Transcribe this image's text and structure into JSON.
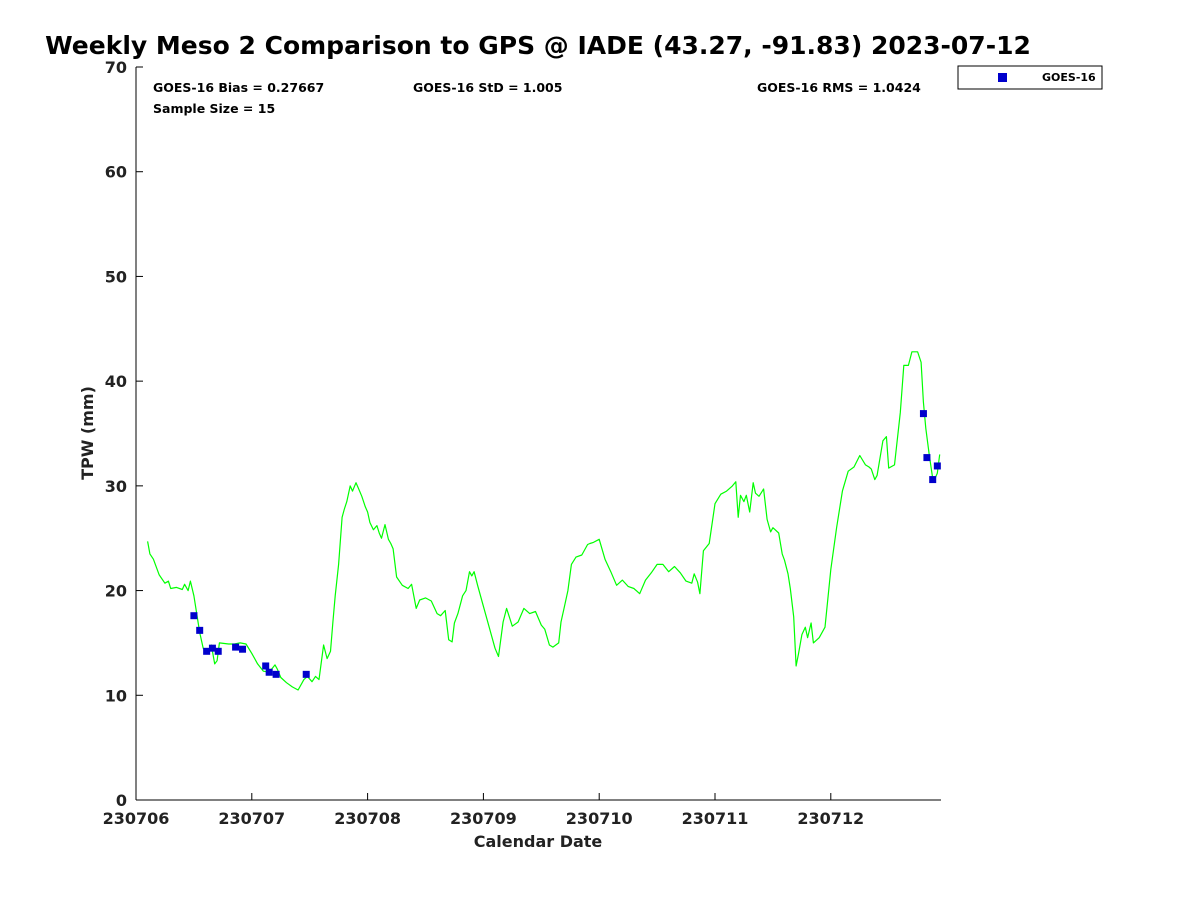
{
  "chart_data": {
    "type": "line",
    "title": "Weekly Meso 2 Comparison to GPS @ IADE (43.27, -91.83) 2023-07-12",
    "xlabel": "Calendar Date",
    "ylabel": "TPW (mm)",
    "ylim": [
      0,
      70
    ],
    "y_ticks": [
      "0",
      "10",
      "20",
      "30",
      "40",
      "50",
      "60",
      "70"
    ],
    "x_ticks": [
      "230706",
      "230707",
      "230708",
      "230709",
      "230710",
      "230711",
      "230712"
    ],
    "grid": false,
    "legend_position": "top-right outside plot",
    "stats": {
      "bias": "GOES-16 Bias = 0.27667",
      "std": "GOES-16 StD = 1.005",
      "rms": "GOES-16 RMS = 1.0424",
      "sample_size": "Sample Size = 15"
    },
    "series": [
      {
        "name": "",
        "kind": "line",
        "color": "#00ff00",
        "x": [
          230706.1,
          230706.12,
          230706.15,
          230706.2,
          230706.25,
          230706.28,
          230706.3,
          230706.35,
          230706.4,
          230706.42,
          230706.45,
          230706.47,
          230706.5,
          230706.55,
          230706.58,
          230706.62,
          230706.65,
          230706.68,
          230706.7,
          230706.72,
          230706.8,
          230706.85,
          230706.9,
          230706.95,
          230707.0,
          230707.05,
          230707.1,
          230707.15,
          230707.2,
          230707.22,
          230707.25,
          230707.3,
          230707.35,
          230707.4,
          230707.45,
          230707.48,
          230707.52,
          230707.55,
          230707.58,
          230707.62,
          230707.65,
          230707.68,
          230707.7,
          230707.72,
          230707.75,
          230707.78,
          230707.8,
          230707.82,
          230707.85,
          230707.87,
          230707.9,
          230707.92,
          230707.95,
          230707.98,
          230708.0,
          230708.02,
          230708.05,
          230708.08,
          230708.1,
          230708.12,
          230708.15,
          230708.18,
          230708.2,
          230708.22,
          230708.25,
          230708.3,
          230708.35,
          230708.38,
          230708.42,
          230708.45,
          230708.5,
          230708.55,
          230708.6,
          230708.63,
          230708.67,
          230708.7,
          230708.73,
          230708.75,
          230708.78,
          230708.82,
          230708.85,
          230708.88,
          230708.9,
          230708.92,
          230708.95,
          230709.0,
          230709.05,
          230709.1,
          230709.13,
          230709.17,
          230709.2,
          230709.25,
          230709.3,
          230709.35,
          230709.4,
          230709.45,
          230709.5,
          230709.53,
          230709.57,
          230709.6,
          230709.65,
          230709.67,
          230709.7,
          230709.73,
          230709.76,
          230709.8,
          230709.85,
          230709.9,
          230709.92,
          230709.95,
          230710.0,
          230710.05,
          230710.1,
          230710.15,
          230710.2,
          230710.25,
          230710.3,
          230710.35,
          230710.4,
          230710.45,
          230710.5,
          230710.55,
          230710.6,
          230710.65,
          230710.7,
          230710.75,
          230710.8,
          230710.82,
          230710.85,
          230710.87,
          230710.9,
          230710.95,
          230711.0,
          230711.05,
          230711.1,
          230711.15,
          230711.18,
          230711.2,
          230711.22,
          230711.25,
          230711.27,
          230711.3,
          230711.33,
          230711.35,
          230711.38,
          230711.42,
          230711.45,
          230711.48,
          230711.5,
          230711.55,
          230711.58,
          230711.6,
          230711.63,
          230711.65,
          230711.68,
          230711.7,
          230711.72,
          230711.75,
          230711.78,
          230711.8,
          230711.83,
          230711.85,
          230711.9,
          230711.95,
          230712.0,
          230712.05,
          230712.1,
          230712.15,
          230712.2,
          230712.25,
          230712.3,
          230712.33,
          230712.35,
          230712.38,
          230712.4,
          230712.45,
          230712.48,
          230712.5,
          230712.55,
          230712.6,
          230712.63,
          230712.67,
          230712.7,
          230712.73,
          230712.75,
          230712.78,
          230712.8,
          230712.82,
          230712.85,
          230712.88,
          230712.9,
          230712.92,
          230712.94
        ],
        "y": [
          24.7,
          23.5,
          23.0,
          21.5,
          20.7,
          20.9,
          20.2,
          20.3,
          20.1,
          20.6,
          20.0,
          20.9,
          19.5,
          16.0,
          14.5,
          14.0,
          14.8,
          13.0,
          13.3,
          15.0,
          14.9,
          14.9,
          15.0,
          14.9,
          14.0,
          13.0,
          12.3,
          12.2,
          12.9,
          12.5,
          11.7,
          11.2,
          10.8,
          10.5,
          11.5,
          11.8,
          11.3,
          11.8,
          11.5,
          14.8,
          13.5,
          14.2,
          17.0,
          19.5,
          22.5,
          27.0,
          27.8,
          28.5,
          30.0,
          29.5,
          30.3,
          29.8,
          29.0,
          28.0,
          27.5,
          26.5,
          25.8,
          26.2,
          25.5,
          25.0,
          26.3,
          24.9,
          24.5,
          24.0,
          21.3,
          20.5,
          20.2,
          20.6,
          18.3,
          19.1,
          19.3,
          19.0,
          17.8,
          17.6,
          18.1,
          15.3,
          15.1,
          16.9,
          17.8,
          19.5,
          20.0,
          21.8,
          21.4,
          21.8,
          20.5,
          18.5,
          16.5,
          14.5,
          13.7,
          17.0,
          18.3,
          16.6,
          17.0,
          18.3,
          17.8,
          18.0,
          16.7,
          16.3,
          14.8,
          14.6,
          15.0,
          17.0,
          18.5,
          20.0,
          22.5,
          23.2,
          23.4,
          24.4,
          24.5,
          24.6,
          24.9,
          23.0,
          21.8,
          20.5,
          21.0,
          20.4,
          20.2,
          19.7,
          21.0,
          21.7,
          22.5,
          22.5,
          21.8,
          22.3,
          21.7,
          20.9,
          20.7,
          21.6,
          20.8,
          19.7,
          23.8,
          24.5,
          28.3,
          29.2,
          29.5,
          30.0,
          30.4,
          27.0,
          29.1,
          28.5,
          29.1,
          27.5,
          30.3,
          29.3,
          29.0,
          29.7,
          26.8,
          25.6,
          26.0,
          25.5,
          23.5,
          22.9,
          21.6,
          20.2,
          17.5,
          12.8,
          13.9,
          15.8,
          16.5,
          15.5,
          16.9,
          15.0,
          15.5,
          16.5,
          22.0,
          26.0,
          29.5,
          31.4,
          31.8,
          32.9,
          32.0,
          31.8,
          31.6,
          30.6,
          31.0,
          34.3,
          34.7,
          31.7,
          32.0,
          37.0,
          41.5,
          41.5,
          42.8,
          42.8,
          42.8,
          41.8,
          38.0,
          35.5,
          33.0,
          30.7,
          30.7,
          31.2,
          33.0
        ]
      },
      {
        "name": "GOES-16",
        "kind": "scatter",
        "color": "#0000cc",
        "x": [
          230706.5,
          230706.55,
          230706.61,
          230706.66,
          230706.71,
          230706.86,
          230706.92,
          230707.12,
          230707.15,
          230707.21,
          230707.47,
          230712.8,
          230712.83,
          230712.88,
          230712.92
        ],
        "y": [
          17.6,
          16.2,
          14.2,
          14.5,
          14.2,
          14.6,
          14.4,
          12.8,
          12.2,
          12.0,
          12.0,
          36.9,
          32.7,
          30.6,
          31.9
        ]
      }
    ]
  },
  "legend": {
    "label": "GOES-16"
  },
  "colors": {
    "line": "#00ff00",
    "marker": "#0000cc",
    "axis": "#000000"
  }
}
